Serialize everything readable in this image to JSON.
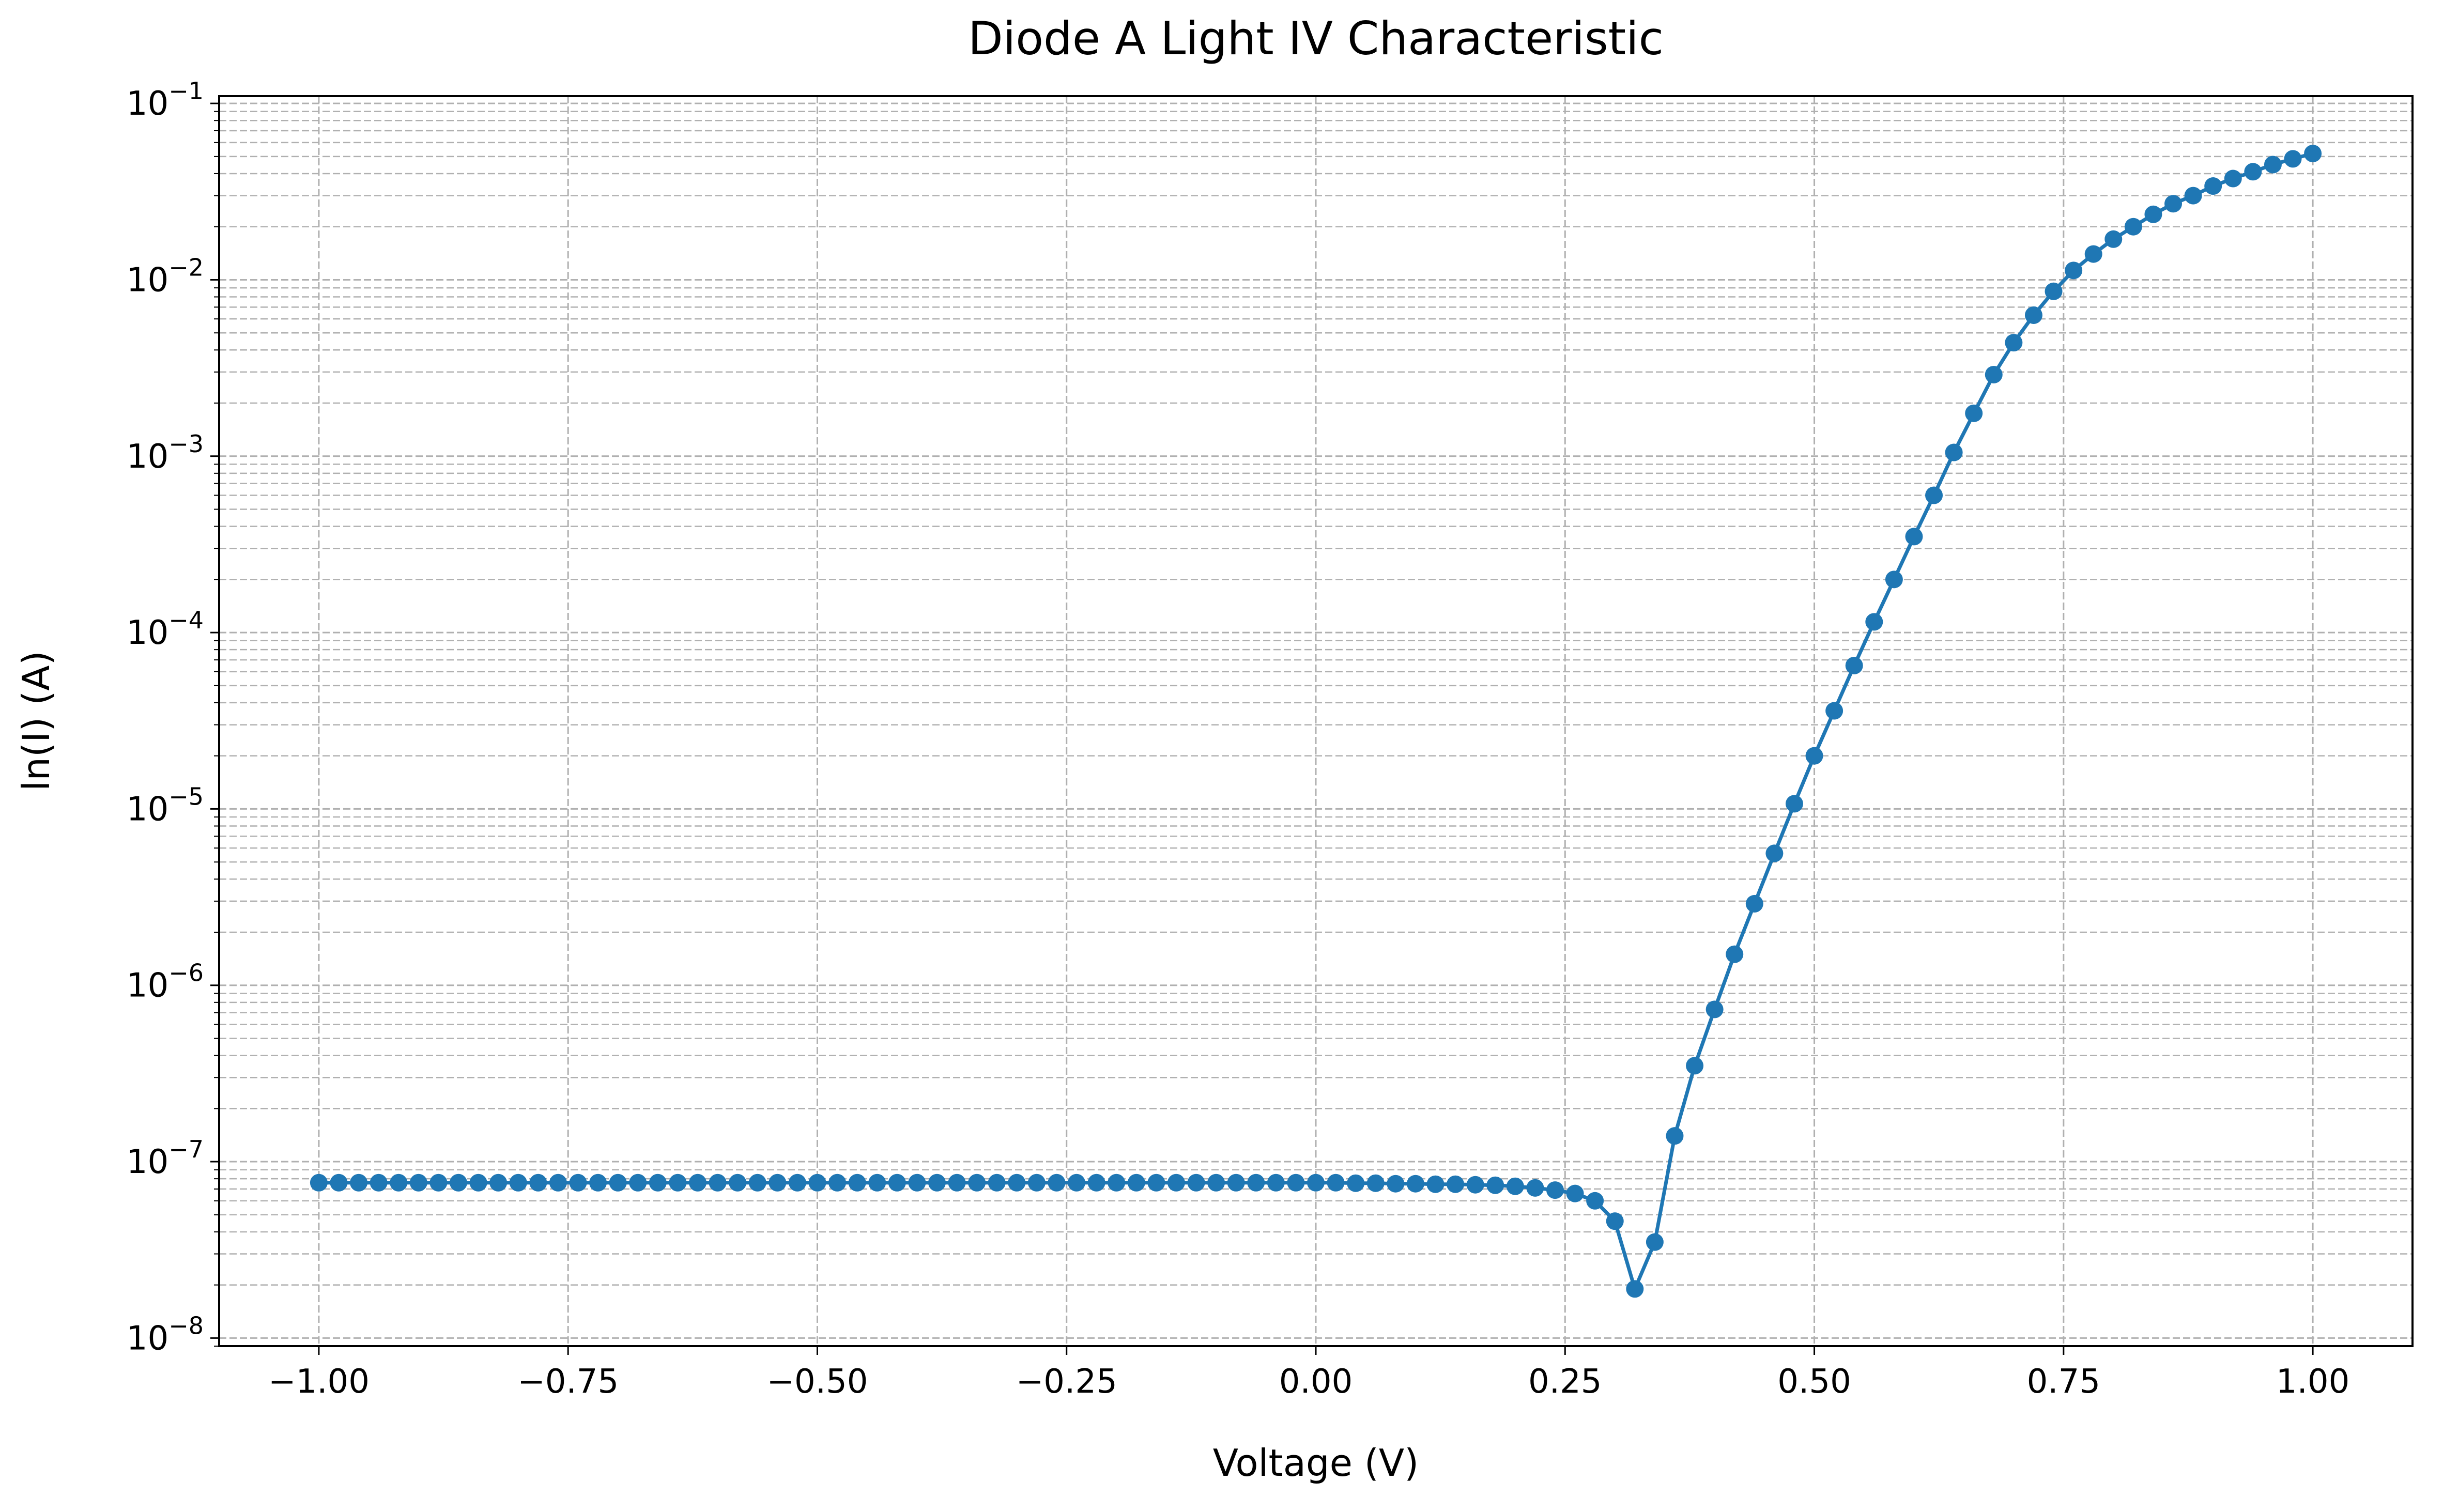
{
  "chart_data": {
    "type": "line",
    "title": "Diode A Light IV Characteristic",
    "xlabel": "Voltage (V)",
    "ylabel": "ln(I) (A)",
    "x_scale": "linear",
    "y_scale": "log",
    "xlim": [
      -1.1,
      1.1
    ],
    "ylim": [
      9e-09,
      0.11
    ],
    "x_ticks": [
      -1.0,
      -0.75,
      -0.5,
      -0.25,
      0.0,
      0.25,
      0.5,
      0.75,
      1.0
    ],
    "x_tick_labels": [
      "−1.00",
      "−0.75",
      "−0.50",
      "−0.25",
      "0.00",
      "0.25",
      "0.50",
      "0.75",
      "1.00"
    ],
    "y_ticks": [
      1e-08,
      1e-07,
      1e-06,
      1e-05,
      0.0001,
      0.001,
      0.01,
      0.1
    ],
    "y_tick_labels": [
      {
        "base": "10",
        "exp": "−8"
      },
      {
        "base": "10",
        "exp": "−7"
      },
      {
        "base": "10",
        "exp": "−6"
      },
      {
        "base": "10",
        "exp": "−5"
      },
      {
        "base": "10",
        "exp": "−4"
      },
      {
        "base": "10",
        "exp": "−3"
      },
      {
        "base": "10",
        "exp": "−2"
      },
      {
        "base": "10",
        "exp": "−1"
      }
    ],
    "grid": {
      "major": true,
      "minor": true,
      "style": "dashed",
      "color": "#b0b0b0"
    },
    "legend": "none",
    "series": [
      {
        "color": "#1f77b4",
        "marker": "circle",
        "x": [
          -1.0,
          -0.98,
          -0.96,
          -0.94,
          -0.92,
          -0.9,
          -0.88,
          -0.86,
          -0.84,
          -0.82,
          -0.8,
          -0.78,
          -0.76,
          -0.74,
          -0.72,
          -0.7,
          -0.68,
          -0.66,
          -0.64,
          -0.62,
          -0.6,
          -0.58,
          -0.56,
          -0.54,
          -0.52,
          -0.5,
          -0.48,
          -0.46,
          -0.44,
          -0.42,
          -0.4,
          -0.38,
          -0.36,
          -0.34,
          -0.32,
          -0.3,
          -0.28,
          -0.26,
          -0.24,
          -0.22,
          -0.2,
          -0.18,
          -0.16,
          -0.14,
          -0.12,
          -0.1,
          -0.08,
          -0.06,
          -0.04,
          -0.02,
          0.0,
          0.02,
          0.04,
          0.06,
          0.08,
          0.1,
          0.12,
          0.14,
          0.16,
          0.18,
          0.2,
          0.22,
          0.24,
          0.26,
          0.28,
          0.3,
          0.32,
          0.34,
          0.36,
          0.38,
          0.4,
          0.42,
          0.44,
          0.46,
          0.48,
          0.5,
          0.52,
          0.54,
          0.56,
          0.58,
          0.6,
          0.62,
          0.64,
          0.66,
          0.68,
          0.7,
          0.72,
          0.74,
          0.76,
          0.78,
          0.8,
          0.82,
          0.84,
          0.86,
          0.88,
          0.9,
          0.92,
          0.94,
          0.96,
          0.98,
          1.0
        ],
        "y": [
          7.6e-08,
          7.6e-08,
          7.6e-08,
          7.6e-08,
          7.6e-08,
          7.6e-08,
          7.6e-08,
          7.6e-08,
          7.6e-08,
          7.6e-08,
          7.6e-08,
          7.6e-08,
          7.6e-08,
          7.6e-08,
          7.6e-08,
          7.6e-08,
          7.6e-08,
          7.6e-08,
          7.6e-08,
          7.6e-08,
          7.6e-08,
          7.6e-08,
          7.6e-08,
          7.6e-08,
          7.6e-08,
          7.6e-08,
          7.6e-08,
          7.6e-08,
          7.6e-08,
          7.6e-08,
          7.6e-08,
          7.6e-08,
          7.6e-08,
          7.6e-08,
          7.6e-08,
          7.6e-08,
          7.6e-08,
          7.6e-08,
          7.6e-08,
          7.6e-08,
          7.6e-08,
          7.6e-08,
          7.6e-08,
          7.6e-08,
          7.6e-08,
          7.6e-08,
          7.6e-08,
          7.6e-08,
          7.6e-08,
          7.6e-08,
          7.6e-08,
          7.6e-08,
          7.55e-08,
          7.55e-08,
          7.5e-08,
          7.5e-08,
          7.45e-08,
          7.45e-08,
          7.4e-08,
          7.35e-08,
          7.25e-08,
          7.1e-08,
          6.9e-08,
          6.6e-08,
          6e-08,
          4.6e-08,
          1.9e-08,
          3.5e-08,
          1.4e-07,
          3.5e-07,
          7.3e-07,
          1.5e-06,
          2.9e-06,
          5.6e-06,
          1.07e-05,
          2e-05,
          3.6e-05,
          6.5e-05,
          0.000115,
          0.0002,
          0.00035,
          0.0006,
          0.00105,
          0.00175,
          0.0029,
          0.0044,
          0.0063,
          0.0086,
          0.0113,
          0.014,
          0.017,
          0.02,
          0.0235,
          0.027,
          0.03,
          0.034,
          0.0375,
          0.041,
          0.045,
          0.0485,
          0.052
        ]
      }
    ]
  }
}
